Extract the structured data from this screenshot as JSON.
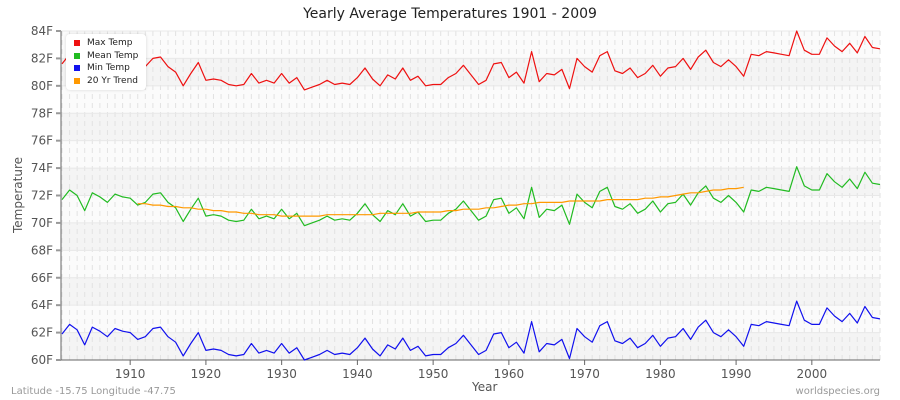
{
  "title": "Yearly Average Temperatures 1901 - 2009",
  "footer": {
    "location": "Latitude -15.75 Longitude -47.75",
    "source": "worldspecies.org"
  },
  "legend": [
    {
      "label": "Max Temp",
      "color": "#ee1111"
    },
    {
      "label": "Mean Temp",
      "color": "#22bb22"
    },
    {
      "label": "Min Temp",
      "color": "#1111ee"
    },
    {
      "label": "20 Yr Trend",
      "color": "#ff9900"
    }
  ],
  "chart_data": {
    "type": "line",
    "title": "Yearly Average Temperatures 1901 - 2009",
    "xlabel": "Year",
    "ylabel": "Temperature",
    "xlim": [
      1901,
      2009
    ],
    "ylim": [
      60,
      84
    ],
    "x_ticks": [
      1910,
      1920,
      1930,
      1940,
      1950,
      1960,
      1970,
      1980,
      1990,
      2000
    ],
    "y_ticks": [
      "60F",
      "62F",
      "64F",
      "66F",
      "68F",
      "70F",
      "72F",
      "74F",
      "76F",
      "78F",
      "80F",
      "82F",
      "84F"
    ],
    "grid": true,
    "legend_position": "top-left inside",
    "x": [
      1901,
      1902,
      1903,
      1904,
      1905,
      1906,
      1907,
      1908,
      1909,
      1910,
      1911,
      1912,
      1913,
      1914,
      1915,
      1916,
      1917,
      1918,
      1919,
      1920,
      1921,
      1922,
      1923,
      1924,
      1925,
      1926,
      1927,
      1928,
      1929,
      1930,
      1931,
      1932,
      1933,
      1934,
      1935,
      1936,
      1937,
      1938,
      1939,
      1940,
      1941,
      1942,
      1943,
      1944,
      1945,
      1946,
      1947,
      1948,
      1949,
      1950,
      1951,
      1952,
      1953,
      1954,
      1955,
      1956,
      1957,
      1958,
      1959,
      1960,
      1961,
      1962,
      1963,
      1964,
      1965,
      1966,
      1967,
      1968,
      1969,
      1970,
      1971,
      1972,
      1973,
      1974,
      1975,
      1976,
      1977,
      1978,
      1979,
      1980,
      1981,
      1982,
      1983,
      1984,
      1985,
      1986,
      1987,
      1988,
      1989,
      1990,
      1991,
      1992,
      1993,
      1994,
      1995,
      1996,
      1997,
      1998,
      1999,
      2000,
      2001,
      2002,
      2003,
      2004,
      2005,
      2006,
      2007,
      2008,
      2009
    ],
    "series": [
      {
        "name": "Max Temp",
        "color": "#ee1111",
        "values": [
          81.6,
          82.3,
          81.9,
          80.8,
          82.1,
          81.8,
          81.4,
          82.0,
          81.8,
          81.7,
          81.2,
          81.4,
          82.0,
          82.1,
          81.4,
          81.0,
          80.0,
          80.9,
          81.7,
          80.4,
          80.5,
          80.4,
          80.1,
          80.0,
          80.1,
          80.9,
          80.2,
          80.4,
          80.2,
          80.9,
          80.2,
          80.6,
          79.7,
          79.9,
          80.1,
          80.4,
          80.1,
          80.2,
          80.1,
          80.6,
          81.3,
          80.5,
          80.0,
          80.8,
          80.5,
          81.3,
          80.4,
          80.7,
          80.0,
          80.1,
          80.1,
          80.6,
          80.9,
          81.5,
          80.8,
          80.1,
          80.4,
          81.6,
          81.7,
          80.6,
          81.0,
          80.2,
          82.5,
          80.3,
          80.9,
          80.8,
          81.2,
          79.8,
          82.0,
          81.4,
          81.0,
          82.2,
          82.5,
          81.1,
          80.9,
          81.3,
          80.6,
          80.9,
          81.5,
          80.7,
          81.3,
          81.4,
          82.0,
          81.2,
          82.1,
          82.6,
          81.7,
          81.4,
          81.9,
          81.4,
          80.7,
          82.3,
          82.2,
          82.5,
          82.4,
          82.3,
          82.2,
          84.0,
          82.6,
          82.3,
          82.3,
          83.5,
          82.9,
          82.5,
          83.1,
          82.4,
          83.6,
          82.8,
          82.7
        ]
      },
      {
        "name": "Mean Temp",
        "color": "#22bb22",
        "values": [
          71.7,
          72.4,
          72.0,
          70.9,
          72.2,
          71.9,
          71.5,
          72.1,
          71.9,
          71.8,
          71.3,
          71.5,
          72.1,
          72.2,
          71.5,
          71.1,
          70.1,
          71.0,
          71.8,
          70.5,
          70.6,
          70.5,
          70.2,
          70.1,
          70.2,
          71.0,
          70.3,
          70.5,
          70.3,
          71.0,
          70.3,
          70.7,
          69.8,
          70.0,
          70.2,
          70.5,
          70.2,
          70.3,
          70.2,
          70.7,
          71.4,
          70.6,
          70.1,
          70.9,
          70.6,
          71.4,
          70.5,
          70.8,
          70.1,
          70.2,
          70.2,
          70.7,
          71.0,
          71.6,
          70.9,
          70.2,
          70.5,
          71.7,
          71.8,
          70.7,
          71.1,
          70.3,
          72.6,
          70.4,
          71.0,
          70.9,
          71.3,
          69.9,
          72.1,
          71.5,
          71.1,
          72.3,
          72.6,
          71.2,
          71.0,
          71.4,
          70.7,
          71.0,
          71.6,
          70.8,
          71.4,
          71.5,
          72.1,
          71.3,
          72.2,
          72.7,
          71.8,
          71.5,
          72.0,
          71.5,
          70.8,
          72.4,
          72.3,
          72.6,
          72.5,
          72.4,
          72.3,
          74.1,
          72.7,
          72.4,
          72.4,
          73.6,
          73.0,
          72.6,
          73.2,
          72.5,
          73.7,
          72.9,
          72.8
        ]
      },
      {
        "name": "Min Temp",
        "color": "#1111ee",
        "values": [
          61.9,
          62.6,
          62.2,
          61.1,
          62.4,
          62.1,
          61.7,
          62.3,
          62.1,
          62.0,
          61.5,
          61.7,
          62.3,
          62.4,
          61.7,
          61.3,
          60.3,
          61.2,
          62.0,
          60.7,
          60.8,
          60.7,
          60.4,
          60.3,
          60.4,
          61.2,
          60.5,
          60.7,
          60.5,
          61.2,
          60.5,
          60.9,
          60.0,
          60.2,
          60.4,
          60.7,
          60.4,
          60.5,
          60.4,
          60.9,
          61.6,
          60.8,
          60.3,
          61.1,
          60.8,
          61.6,
          60.7,
          61.0,
          60.3,
          60.4,
          60.4,
          60.9,
          61.2,
          61.8,
          61.1,
          60.4,
          60.7,
          61.9,
          62.0,
          60.9,
          61.3,
          60.5,
          62.8,
          60.6,
          61.2,
          61.1,
          61.5,
          60.1,
          62.3,
          61.7,
          61.3,
          62.5,
          62.8,
          61.4,
          61.2,
          61.6,
          60.9,
          61.2,
          61.8,
          61.0,
          61.6,
          61.7,
          62.3,
          61.5,
          62.4,
          62.9,
          62.0,
          61.7,
          62.2,
          61.7,
          61.0,
          62.6,
          62.5,
          62.8,
          62.7,
          62.6,
          62.5,
          64.3,
          62.9,
          62.6,
          62.6,
          63.8,
          63.2,
          62.8,
          63.4,
          62.7,
          63.9,
          63.1,
          63.0
        ]
      },
      {
        "name": "20 Yr Trend",
        "color": "#ff9900",
        "x_start": 1911,
        "values": [
          71.4,
          71.4,
          71.3,
          71.3,
          71.2,
          71.2,
          71.1,
          71.1,
          71.0,
          71.0,
          70.9,
          70.9,
          70.8,
          70.8,
          70.7,
          70.7,
          70.6,
          70.6,
          70.6,
          70.5,
          70.5,
          70.5,
          70.5,
          70.5,
          70.5,
          70.6,
          70.6,
          70.6,
          70.6,
          70.6,
          70.6,
          70.6,
          70.7,
          70.7,
          70.7,
          70.7,
          70.7,
          70.8,
          70.8,
          70.8,
          70.8,
          70.9,
          70.9,
          71.0,
          71.0,
          71.0,
          71.1,
          71.1,
          71.2,
          71.3,
          71.3,
          71.4,
          71.4,
          71.5,
          71.5,
          71.5,
          71.5,
          71.6,
          71.6,
          71.6,
          71.6,
          71.6,
          71.7,
          71.7,
          71.7,
          71.7,
          71.7,
          71.8,
          71.8,
          71.9,
          71.9,
          72.0,
          72.1,
          72.2,
          72.2,
          72.3,
          72.4,
          72.4,
          72.5,
          72.5,
          72.6
        ]
      }
    ]
  }
}
